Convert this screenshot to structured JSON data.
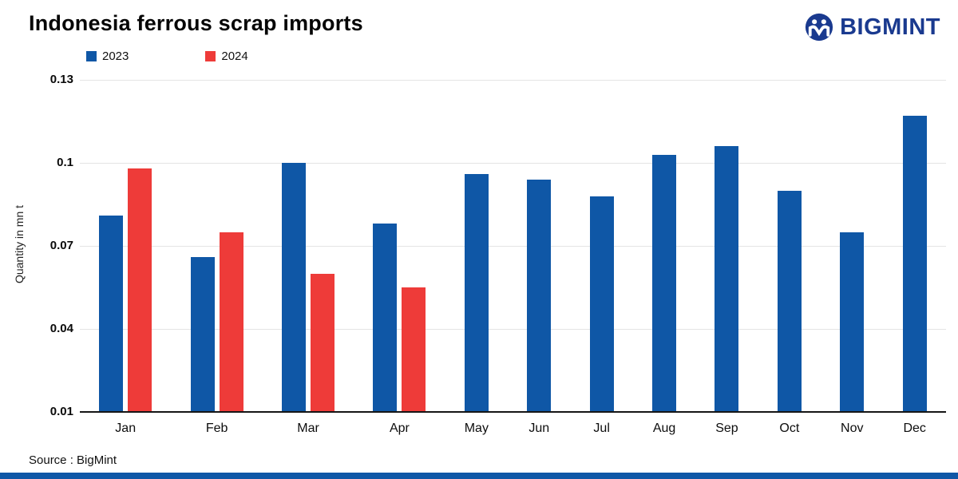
{
  "header": {
    "title": "Indonesia ferrous scrap imports"
  },
  "logo": {
    "wordmark": "BIGMINT",
    "icon": "bigmint-circle-people-icon"
  },
  "legend": {
    "items": [
      {
        "label": "2023",
        "color": "#0f57a6"
      },
      {
        "label": "2024",
        "color": "#ee3b39"
      }
    ]
  },
  "chart_data": {
    "type": "bar",
    "title": "Indonesia ferrous scrap imports",
    "xlabel": "",
    "ylabel": "Quantity in mn t",
    "categories": [
      "Jan",
      "Feb",
      "Mar",
      "Apr",
      "May",
      "Jun",
      "Jul",
      "Aug",
      "Sep",
      "Oct",
      "Nov",
      "Dec"
    ],
    "series": [
      {
        "name": "2023",
        "color": "#0f57a6",
        "values": [
          0.081,
          0.066,
          0.1,
          0.078,
          0.096,
          0.094,
          0.088,
          0.103,
          0.106,
          0.09,
          0.075,
          0.117
        ]
      },
      {
        "name": "2024",
        "color": "#ee3b39",
        "values": [
          0.098,
          0.075,
          0.06,
          0.055,
          null,
          null,
          null,
          null,
          null,
          null,
          null,
          null
        ]
      }
    ],
    "ylim": [
      0.01,
      0.13
    ],
    "yticks": [
      0.01,
      0.04,
      0.07,
      0.1,
      0.13
    ],
    "grid": true,
    "legend_position": "top-left"
  },
  "source": {
    "text": "Source : BigMint"
  },
  "footer": {
    "accent_color": "#0f57a6"
  }
}
